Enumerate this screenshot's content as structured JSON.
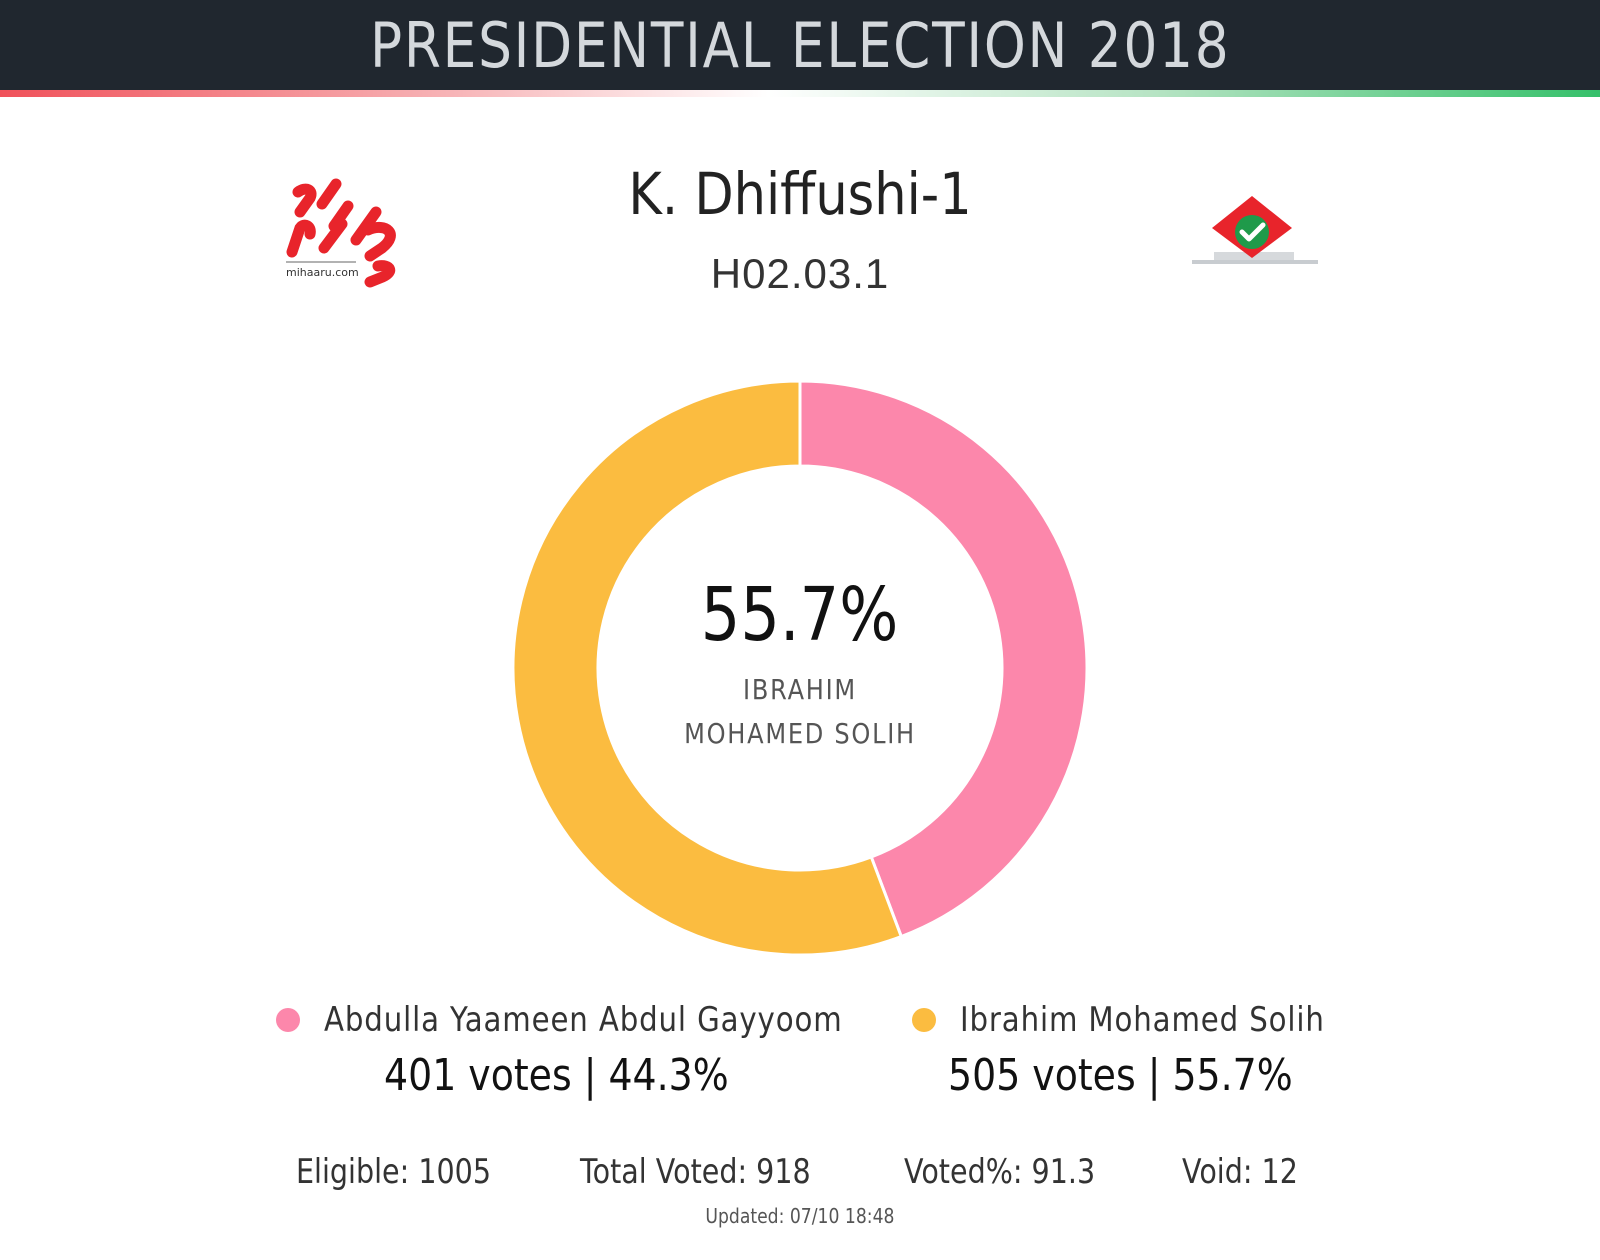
{
  "header": {
    "title": "PRESIDENTIAL ELECTION 2018"
  },
  "logos": {
    "left_caption": "mihaaru.com"
  },
  "location": {
    "name": "K. Dhiffushi-1",
    "code": "H02.03.1"
  },
  "center": {
    "percent": "55.7%",
    "name": "IBRAHIM MOHAMED SOLIH"
  },
  "colors": {
    "pink": "#fc87ab",
    "yellow": "#fbbc40",
    "header_bg": "#20272f"
  },
  "chart_data": {
    "type": "pie",
    "variant": "donut",
    "series": [
      {
        "name": "Abdulla Yaameen Abdul Gayyoom",
        "value": 401,
        "percent": 44.3,
        "color": "#fc87ab"
      },
      {
        "name": "Ibrahim Mohamed Solih",
        "value": 505,
        "percent": 55.7,
        "color": "#fbbc40"
      }
    ]
  },
  "legend": [
    {
      "name": "Abdulla Yaameen Abdul Gayyoom",
      "votes": "401 votes | 44.3%"
    },
    {
      "name": "Ibrahim Mohamed Solih",
      "votes": "505 votes | 55.7%"
    }
  ],
  "stats": {
    "eligible": "Eligible: 1005",
    "total_voted": "Total Voted: 918",
    "voted_pct": "Voted%: 91.3",
    "void": "Void: 12"
  },
  "updated": "Updated:  07/10 18:48"
}
